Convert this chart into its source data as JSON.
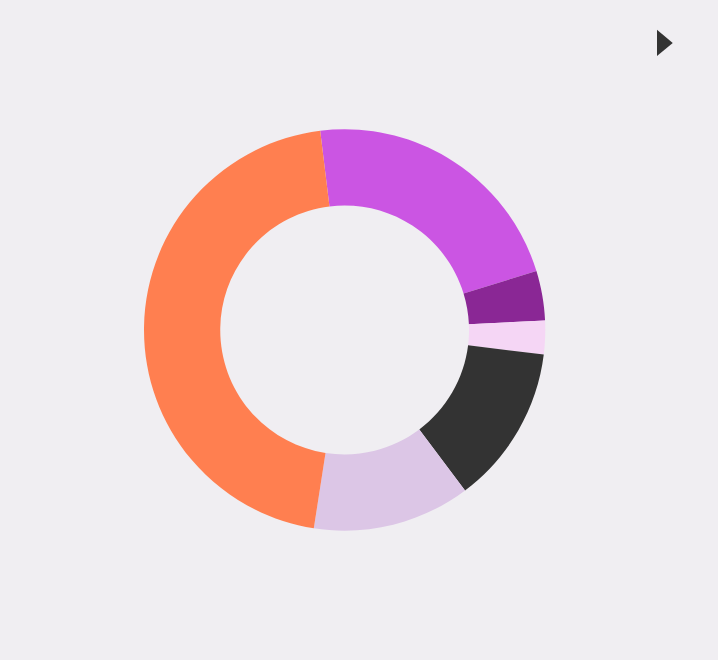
{
  "chart_data": {
    "type": "donut",
    "categories": [
      null,
      null,
      null,
      null,
      null,
      null
    ],
    "values": [
      22.2,
      4,
      2.7,
      12.8,
      12.7,
      45.6
    ],
    "colors": [
      "#cb55e3",
      "#8a2795",
      "#f5d6f5",
      "#333333",
      "#dcc6e6",
      "#ff7f50"
    ]
  }
}
